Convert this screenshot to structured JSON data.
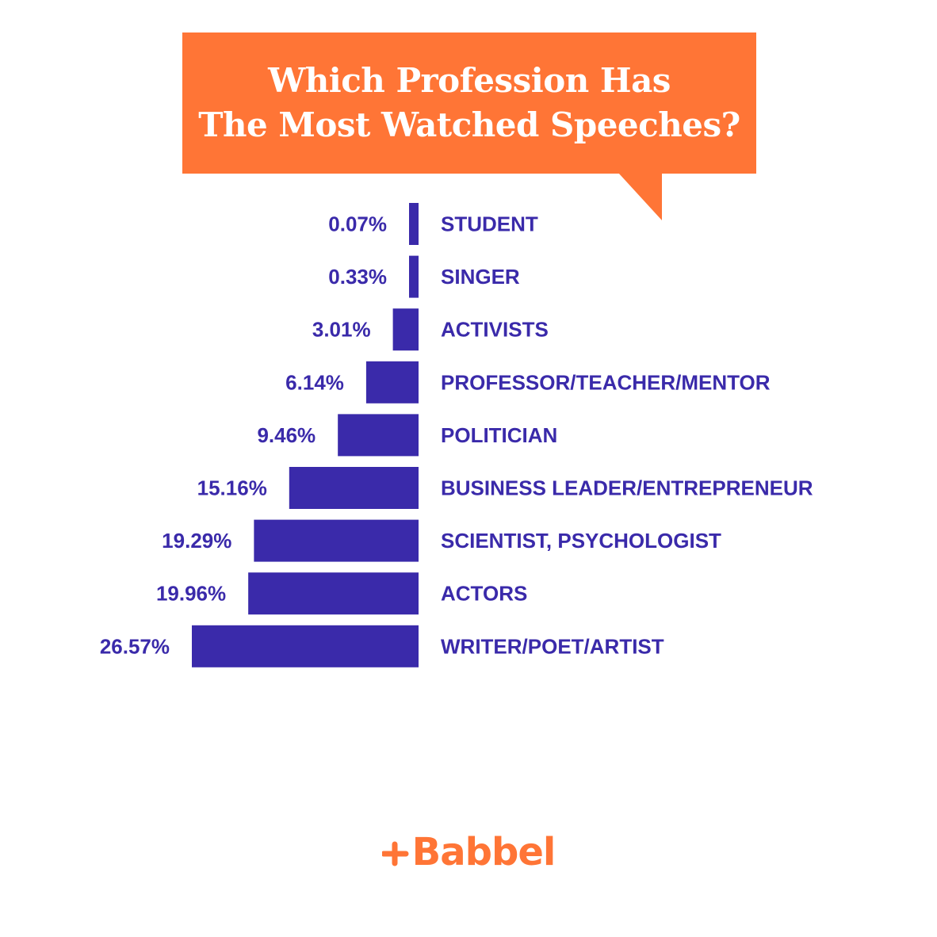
{
  "title": {
    "line1": "Which Profession Has",
    "line2": "The Most Watched Speeches?"
  },
  "colors": {
    "accent": "#ff7536",
    "bar": "#3a2aaa",
    "text": "#3a2aaa",
    "background": "#ffffff"
  },
  "chart_data": {
    "type": "bar",
    "orientation": "horizontal",
    "title": "Which Profession Has The Most Watched Speeches?",
    "xlabel": "",
    "ylabel": "",
    "grid": false,
    "categories": [
      "STUDENT",
      "SINGER",
      "ACTIVISTS",
      "PROFESSOR/TEACHER/MENTOR",
      "POLITICIAN",
      "BUSINESS LEADER/ENTREPRENEUR",
      "SCIENTIST, PSYCHOLOGIST",
      "ACTORS",
      "WRITER/POET/ARTIST"
    ],
    "values": [
      0.07,
      0.33,
      3.01,
      6.14,
      9.46,
      15.16,
      19.29,
      19.96,
      26.57
    ],
    "value_labels": [
      "0.07%",
      "0.33%",
      "3.01%",
      "6.14%",
      "9.46%",
      "15.16%",
      "19.29%",
      "19.96%",
      "26.57%"
    ],
    "unit": "%",
    "xlim": [
      0,
      26.57
    ]
  },
  "logo": {
    "text": "Babbel",
    "icon": "plus-arrow-icon"
  }
}
